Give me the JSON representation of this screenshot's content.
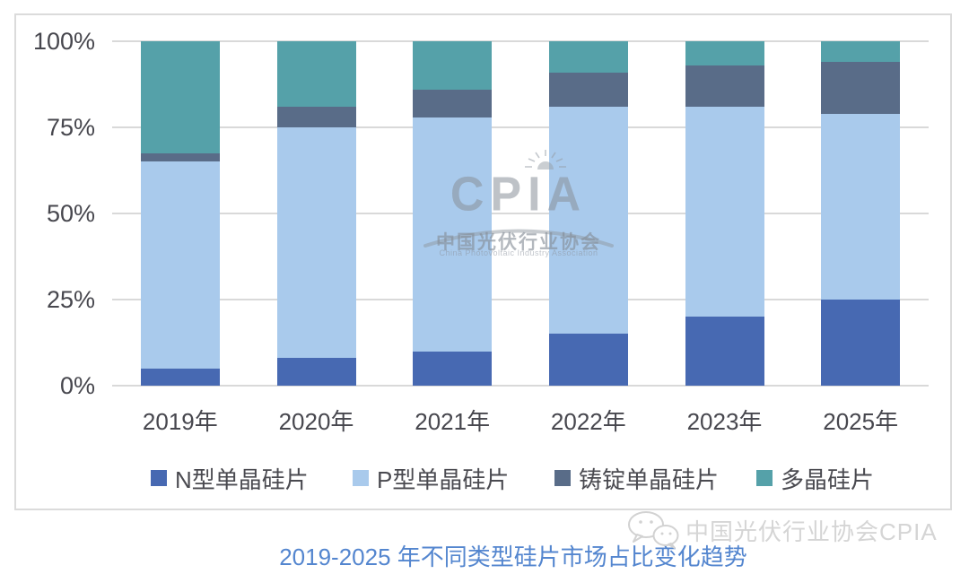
{
  "colors": {
    "n_type": "#4769B2",
    "p_type": "#A9CAEC",
    "cast_mono": "#596C88",
    "multi": "#55A1A9",
    "gridline": "#D9D9D9",
    "box_border": "#DBDBDB",
    "axis_text": "#47474E",
    "legend_text": "#4A4A50",
    "caption_text": "#5486CF",
    "watermark_gray": "#8A929E",
    "watermark_light": "#D5D5D5"
  },
  "chart_data": {
    "type": "bar",
    "stacked": true,
    "unit": "%",
    "title": "2019-2025 年不同类型硅片市场占比变化趋势",
    "categories": [
      "2019年",
      "2020年",
      "2021年",
      "2022年",
      "2023年",
      "2025年"
    ],
    "series": [
      {
        "name": "N型单晶硅片",
        "color_key": "n_type",
        "values": [
          5,
          8,
          10,
          15,
          20,
          25
        ]
      },
      {
        "name": "P型单晶硅片",
        "color_key": "p_type",
        "values": [
          60,
          67,
          68,
          66,
          61,
          54
        ]
      },
      {
        "name": "铸锭单晶硅片",
        "color_key": "cast_mono",
        "values": [
          2.5,
          6,
          8,
          10,
          12,
          15
        ]
      },
      {
        "name": "多晶硅片",
        "color_key": "multi",
        "values": [
          32.5,
          19,
          14,
          9,
          7,
          6
        ]
      }
    ],
    "y_ticks": [
      "0%",
      "25%",
      "50%",
      "75%",
      "100%"
    ],
    "ylim": [
      0,
      100
    ],
    "grid": true,
    "legend_position": "bottom"
  },
  "caption": {
    "title": "2019-2025 年不同类型硅片市场占比变化趋势"
  },
  "watermark_center": {
    "acronym": "CPIA",
    "cn": "中国光伏行业协会",
    "en": "China Photovoltaic Industry Association"
  },
  "watermark_bottom": {
    "text": "中国光伏行业协会CPIA"
  }
}
